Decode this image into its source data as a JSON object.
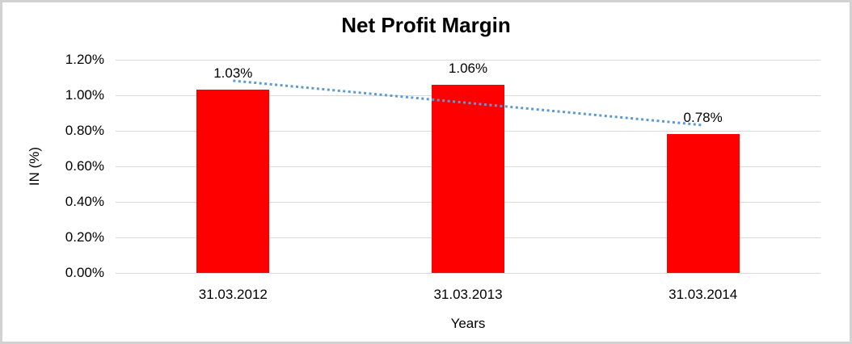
{
  "chart_data": {
    "type": "bar",
    "title": "Net Profit Margin",
    "xlabel": "Years",
    "ylabel": "IN (%)",
    "categories": [
      "31.03.2012",
      "31.03.2013",
      "31.03.2014"
    ],
    "values": [
      1.03,
      1.06,
      0.78
    ],
    "data_labels": [
      "1.03%",
      "1.06%",
      "0.78%"
    ],
    "ylim": [
      0,
      1.2
    ],
    "yticks": [
      {
        "value": 0.0,
        "label": "0.00%"
      },
      {
        "value": 0.2,
        "label": "0.20%"
      },
      {
        "value": 0.4,
        "label": "0.40%"
      },
      {
        "value": 0.6,
        "label": "0.60%"
      },
      {
        "value": 0.8,
        "label": "0.80%"
      },
      {
        "value": 1.0,
        "label": "1.00%"
      },
      {
        "value": 1.2,
        "label": "1.20%"
      }
    ],
    "grid": true,
    "legend": "none",
    "bar_color": "#FF0000",
    "gridline_color": "#D9D9D9",
    "text_color": "#000000",
    "frame_border_color": "#D2D2D2",
    "trendline": {
      "type": "linear",
      "style": "dotted",
      "color": "#5B9BD5",
      "endpoint_values": [
        1.082,
        0.832
      ]
    }
  }
}
